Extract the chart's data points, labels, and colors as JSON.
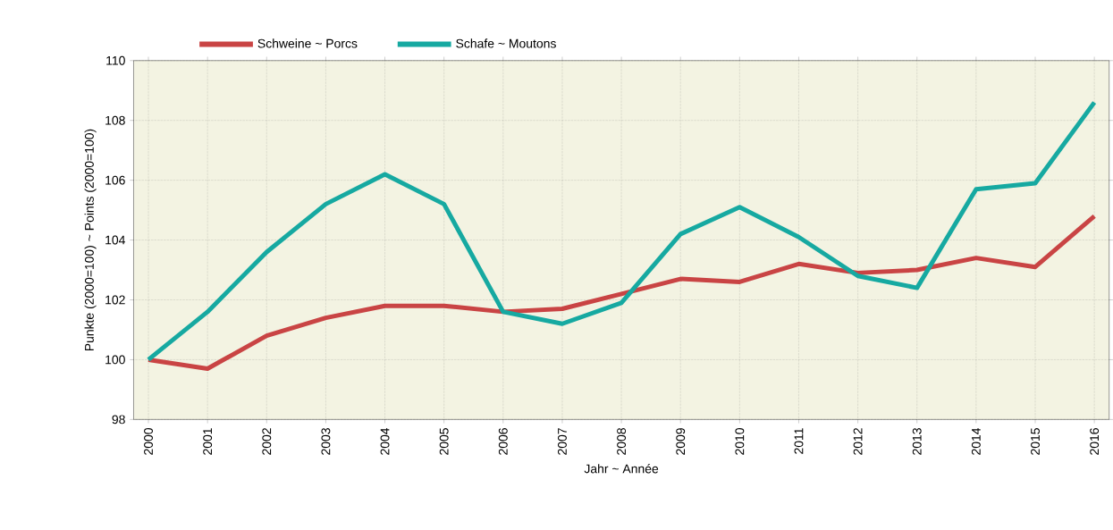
{
  "chart_data": {
    "type": "line",
    "xlabel": "Jahr ~ Année",
    "ylabel": "Punkte (2000=100) ~ Points (2000=100)",
    "x": [
      2000,
      2001,
      2002,
      2003,
      2004,
      2005,
      2006,
      2007,
      2008,
      2009,
      2010,
      2011,
      2012,
      2013,
      2014,
      2015,
      2016
    ],
    "series": [
      {
        "name": "Schweine ~ Porcs",
        "color": "#c94444",
        "values": [
          100,
          99.7,
          100.8,
          101.4,
          101.8,
          101.8,
          101.6,
          101.7,
          102.2,
          102.7,
          102.6,
          103.2,
          102.9,
          103,
          103.4,
          103.1,
          104.8
        ]
      },
      {
        "name": "Schafe ~ Moutons",
        "color": "#16a9a1",
        "values": [
          100,
          101.6,
          103.6,
          105.2,
          106.2,
          105.2,
          101.6,
          101.2,
          101.9,
          104.2,
          105.1,
          104.1,
          102.8,
          102.4,
          105.7,
          105.9,
          108.6
        ]
      }
    ],
    "xlim": [
      1999.75,
      2016.25
    ],
    "ylim": [
      98,
      110
    ],
    "xticks": [
      2000,
      2001,
      2002,
      2003,
      2004,
      2005,
      2006,
      2007,
      2008,
      2009,
      2010,
      2011,
      2012,
      2013,
      2014,
      2015,
      2016
    ],
    "yticks": [
      98,
      100,
      102,
      104,
      106,
      108,
      110
    ],
    "grid": true,
    "legend": "top",
    "marker": "none",
    "line_style": "solid"
  }
}
